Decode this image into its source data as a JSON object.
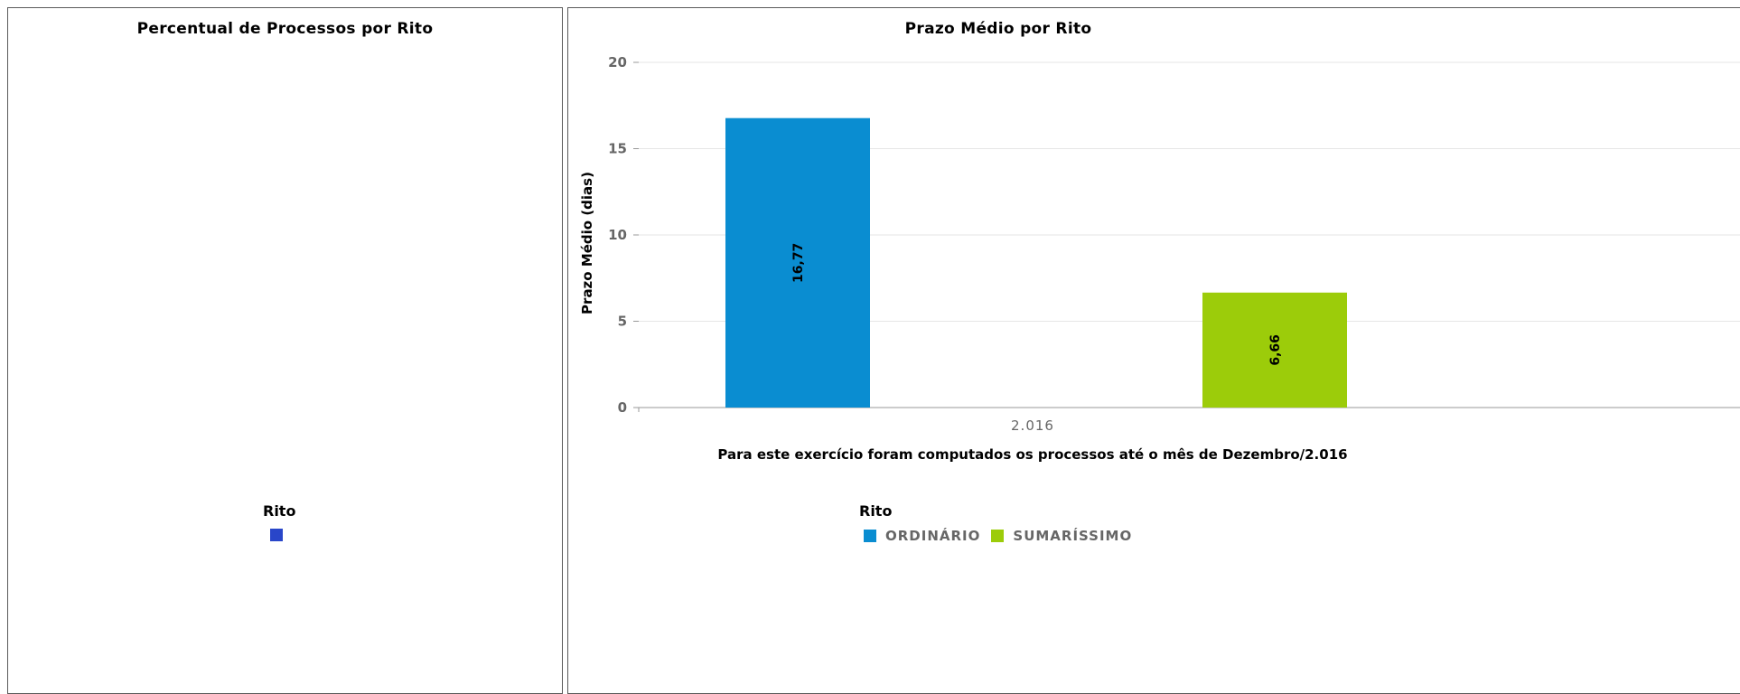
{
  "left_panel": {
    "title": "Percentual de Processos por Rito",
    "legend_title": "Rito",
    "legend_swatch_color": "#2946c9"
  },
  "chart_data": [
    {
      "type": "pie",
      "title": "Percentual de Processos por Rito",
      "legend_title": "Rito",
      "slices": []
    },
    {
      "type": "bar",
      "title": "Prazo Médio por Rito",
      "ylabel": "Prazo Médio (dias)",
      "xlabel": "Para este exercício foram computados os processos até o mês de Dezembro/2.016",
      "categories": [
        "2.016"
      ],
      "ylim": [
        0,
        20
      ],
      "yticks": [
        0,
        5,
        10,
        15,
        20
      ],
      "grid": true,
      "legend_title": "Rito",
      "legend_position": "bottom",
      "series": [
        {
          "name": "ORDINÁRIO",
          "values": [
            16.77
          ],
          "label": "16,77",
          "color": "#0a8dd1"
        },
        {
          "name": "SUMARÍSSIMO",
          "values": [
            6.66
          ],
          "label": "6,66",
          "color": "#9ccc0a"
        }
      ]
    }
  ]
}
